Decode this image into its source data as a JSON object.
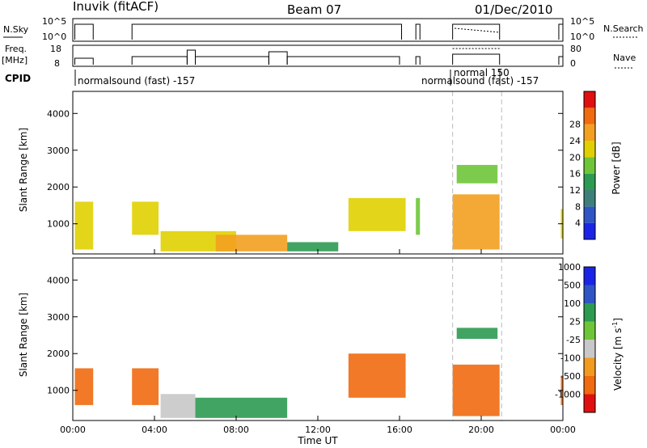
{
  "header": {
    "station": "Inuvik (fitACF)",
    "beam": "Beam 07",
    "date": "01/Dec/2010"
  },
  "params": {
    "nsky_label": "N.Sky",
    "nsky_ticks": [
      "10^5",
      "10^0"
    ],
    "nsearch_label": "N.Search",
    "nsearch_ticks": [
      "10^5",
      "10^0"
    ],
    "freq_label": "Freq.",
    "freq_unit": "[MHz]",
    "freq_ticks": [
      "18",
      "8"
    ],
    "nave_label": "Nave",
    "nave_ticks": [
      "80",
      "0"
    ],
    "cpid_label": "CPID",
    "cpid_names": [
      "normalsound (fast) -157",
      "normal 150",
      "normalsound (fast) -157"
    ]
  },
  "power_bar": {
    "label": "Power [dB]",
    "ticks": [
      "4",
      "8",
      "12",
      "16",
      "20",
      "24",
      "28"
    ]
  },
  "velocity_bar": {
    "label": "Velocity [m s",
    "exp": "-1",
    "close": "]",
    "ticks": [
      "-1000",
      "-500",
      "-100",
      "-25",
      "25",
      "100",
      "500",
      "1000"
    ]
  },
  "chart_data": [
    {
      "type": "heatmap",
      "title": "",
      "xlabel": "Time UT",
      "ylabel": "Slant Range [km]",
      "x_ticks": [
        "00:00",
        "04:00",
        "08:00",
        "12:00",
        "16:00",
        "20:00",
        "00:00"
      ],
      "y_ticks": [
        "1000",
        "2000",
        "3000",
        "4000"
      ],
      "xlim_hours": [
        0,
        24
      ],
      "ylim_km": [
        180,
        4600
      ],
      "colorbar": "Power [dB]",
      "color_scale": [
        0,
        4,
        8,
        12,
        16,
        20,
        24,
        28,
        32
      ],
      "regions": [
        {
          "t": [
            0.1,
            1.0
          ],
          "r": [
            300,
            1600
          ],
          "value": 22
        },
        {
          "t": [
            2.9,
            4.2
          ],
          "r": [
            700,
            1600
          ],
          "value": 22
        },
        {
          "t": [
            4.3,
            8.0
          ],
          "r": [
            250,
            800
          ],
          "value": 20
        },
        {
          "t": [
            7.0,
            10.5
          ],
          "r": [
            250,
            700
          ],
          "value": 26
        },
        {
          "t": [
            10.5,
            13.0
          ],
          "r": [
            250,
            500
          ],
          "value": 12
        },
        {
          "t": [
            13.5,
            16.3
          ],
          "r": [
            800,
            1700
          ],
          "value": 22
        },
        {
          "t": [
            16.8,
            17.0
          ],
          "r": [
            700,
            1700
          ],
          "value": 18
        },
        {
          "t": [
            18.6,
            20.9
          ],
          "r": [
            300,
            1800
          ],
          "value": 24
        },
        {
          "t": [
            18.8,
            20.8
          ],
          "r": [
            2100,
            2600
          ],
          "value": 16
        },
        {
          "t": [
            23.9,
            24.0
          ],
          "r": [
            600,
            1400
          ],
          "value": 20
        }
      ]
    },
    {
      "type": "heatmap",
      "title": "",
      "xlabel": "Time UT",
      "ylabel": "Slant Range [km]",
      "x_ticks": [
        "00:00",
        "04:00",
        "08:00",
        "12:00",
        "16:00",
        "20:00",
        "00:00"
      ],
      "y_ticks": [
        "1000",
        "2000",
        "3000",
        "4000"
      ],
      "xlim_hours": [
        0,
        24
      ],
      "ylim_km": [
        180,
        4600
      ],
      "colorbar": "Velocity [m s-1]",
      "color_scale": [
        -1000,
        -500,
        -100,
        -25,
        25,
        100,
        500,
        1000
      ],
      "regions": [
        {
          "t": [
            0.1,
            1.0
          ],
          "r": [
            600,
            1600
          ],
          "value": -300
        },
        {
          "t": [
            2.9,
            4.2
          ],
          "r": [
            600,
            1600
          ],
          "value": -200
        },
        {
          "t": [
            4.3,
            6.0
          ],
          "r": [
            250,
            900
          ],
          "value": 0
        },
        {
          "t": [
            6.0,
            10.5
          ],
          "r": [
            250,
            800
          ],
          "value": 100
        },
        {
          "t": [
            13.5,
            16.3
          ],
          "r": [
            800,
            2000
          ],
          "value": -150
        },
        {
          "t": [
            18.6,
            20.9
          ],
          "r": [
            300,
            1700
          ],
          "value": -300
        },
        {
          "t": [
            18.8,
            20.8
          ],
          "r": [
            2400,
            2700
          ],
          "value": 120
        },
        {
          "t": [
            23.9,
            24.0
          ],
          "r": [
            600,
            1400
          ],
          "value": -300
        }
      ]
    }
  ]
}
